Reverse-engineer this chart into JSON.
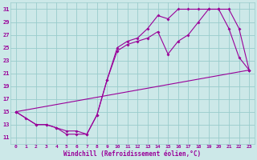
{
  "title": "",
  "xlabel": "Windchill (Refroidissement éolien,°C)",
  "bg_color": "#cce8e8",
  "grid_color": "#99cccc",
  "line_color": "#990099",
  "xlim": [
    -0.5,
    23.5
  ],
  "ylim": [
    10,
    32
  ],
  "xticks": [
    0,
    1,
    2,
    3,
    4,
    5,
    6,
    7,
    8,
    9,
    10,
    11,
    12,
    13,
    14,
    15,
    16,
    17,
    18,
    19,
    20,
    21,
    22,
    23
  ],
  "yticks": [
    11,
    13,
    15,
    17,
    19,
    21,
    23,
    25,
    27,
    29,
    31
  ],
  "line1_x": [
    0,
    1,
    2,
    3,
    4,
    5,
    6,
    7,
    8,
    9,
    10,
    11,
    12,
    13,
    14,
    15,
    16,
    17,
    18,
    19,
    20,
    21,
    22,
    23
  ],
  "line1_y": [
    15.0,
    14.0,
    13.0,
    13.0,
    12.5,
    11.5,
    11.5,
    11.5,
    14.5,
    20.0,
    24.5,
    25.5,
    26.0,
    26.5,
    27.5,
    24.0,
    26.0,
    27.0,
    29.0,
    31.0,
    31.0,
    31.0,
    28.0,
    21.5
  ],
  "line2_x": [
    0,
    2,
    3,
    4,
    5,
    6,
    7,
    8,
    9,
    10,
    11,
    12,
    13,
    14,
    15,
    16,
    17,
    18,
    19,
    20,
    21,
    22,
    23
  ],
  "line2_y": [
    15.0,
    13.0,
    13.0,
    12.5,
    12.0,
    12.0,
    11.5,
    14.5,
    20.0,
    25.0,
    26.0,
    26.5,
    28.0,
    30.0,
    29.5,
    31.0,
    31.0,
    31.0,
    31.0,
    31.0,
    28.0,
    23.5,
    21.5
  ],
  "line3_x": [
    0,
    23
  ],
  "line3_y": [
    15.0,
    21.5
  ]
}
